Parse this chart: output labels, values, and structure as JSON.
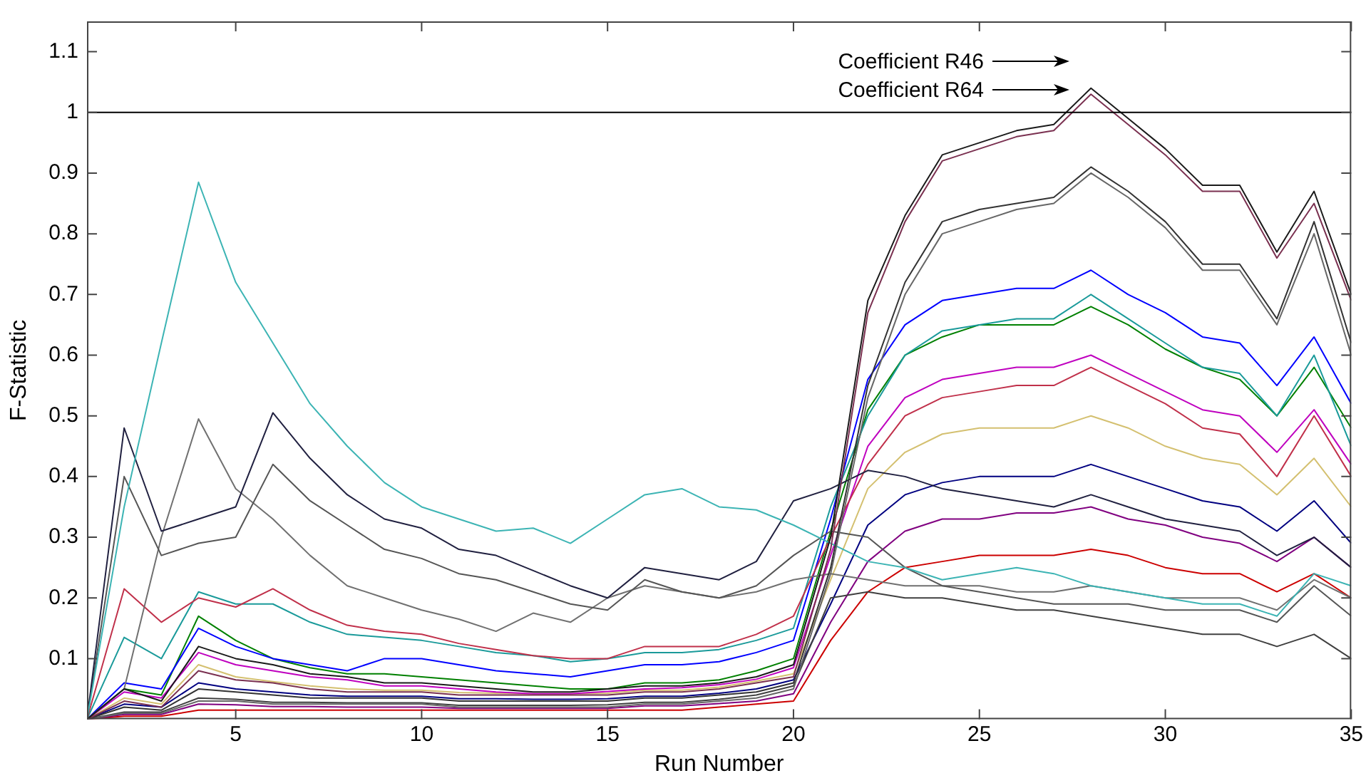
{
  "chart_data": {
    "type": "line",
    "xlabel": "Run Number",
    "ylabel": "F-Statistic",
    "x": [
      1,
      2,
      3,
      4,
      5,
      6,
      7,
      8,
      9,
      10,
      11,
      12,
      13,
      14,
      15,
      16,
      17,
      18,
      19,
      20,
      21,
      22,
      23,
      24,
      25,
      26,
      27,
      28,
      29,
      30,
      31,
      32,
      33,
      34,
      35
    ],
    "xlim": [
      1,
      35
    ],
    "xticks": [
      5,
      10,
      15,
      20,
      25,
      30,
      35
    ],
    "ylim": [
      0,
      1.15
    ],
    "yticks": [
      0.1,
      0.2,
      0.3,
      0.4,
      0.5,
      0.6,
      0.7,
      0.8,
      0.9,
      1,
      1.1
    ],
    "grid": false,
    "legend": false,
    "marker": "none",
    "line_style": "solid",
    "ref_lines": [
      {
        "axis": "y",
        "value": 1,
        "color": "#000000"
      }
    ],
    "annotations": [
      "Coefficient R46",
      "Coefficient R64"
    ],
    "series": [
      {
        "color": "#1a1a1a",
        "values": [
          0,
          0.05,
          0.03,
          0.12,
          0.1,
          0.09,
          0.075,
          0.07,
          0.06,
          0.06,
          0.055,
          0.05,
          0.045,
          0.045,
          0.05,
          0.055,
          0.055,
          0.06,
          0.07,
          0.09,
          0.3,
          0.69,
          0.83,
          0.93,
          0.95,
          0.97,
          0.98,
          1.04,
          0.99,
          0.94,
          0.88,
          0.88,
          0.77,
          0.87,
          0.7
        ]
      },
      {
        "color": "#7a3050",
        "values": [
          0,
          0.03,
          0.02,
          0.08,
          0.065,
          0.06,
          0.05,
          0.045,
          0.045,
          0.045,
          0.04,
          0.04,
          0.04,
          0.04,
          0.04,
          0.045,
          0.045,
          0.05,
          0.06,
          0.07,
          0.28,
          0.67,
          0.82,
          0.92,
          0.94,
          0.96,
          0.97,
          1.03,
          0.98,
          0.93,
          0.87,
          0.87,
          0.76,
          0.85,
          0.69
        ]
      },
      {
        "color": "#333333",
        "values": [
          0,
          0.02,
          0.015,
          0.05,
          0.045,
          0.04,
          0.035,
          0.035,
          0.035,
          0.035,
          0.03,
          0.03,
          0.03,
          0.03,
          0.03,
          0.035,
          0.035,
          0.04,
          0.045,
          0.06,
          0.25,
          0.55,
          0.72,
          0.82,
          0.84,
          0.85,
          0.86,
          0.91,
          0.87,
          0.82,
          0.75,
          0.75,
          0.66,
          0.82,
          0.62
        ]
      },
      {
        "color": "#666666",
        "values": [
          0,
          0.01,
          0.01,
          0.03,
          0.03,
          0.025,
          0.025,
          0.025,
          0.025,
          0.025,
          0.02,
          0.02,
          0.02,
          0.02,
          0.02,
          0.025,
          0.025,
          0.03,
          0.035,
          0.05,
          0.24,
          0.53,
          0.7,
          0.8,
          0.82,
          0.84,
          0.85,
          0.9,
          0.86,
          0.81,
          0.74,
          0.74,
          0.65,
          0.8,
          0.6
        ]
      },
      {
        "color": "#3cb4b4",
        "values": [
          0,
          0.35,
          0.62,
          0.885,
          0.72,
          0.62,
          0.52,
          0.45,
          0.39,
          0.35,
          0.33,
          0.31,
          0.315,
          0.29,
          0.33,
          0.37,
          0.38,
          0.35,
          0.345,
          0.32,
          0.29,
          0.26,
          0.25,
          0.23,
          0.24,
          0.25,
          0.24,
          0.22,
          0.21,
          0.2,
          0.19,
          0.19,
          0.17,
          0.24,
          0.22
        ]
      },
      {
        "color": "#202040",
        "values": [
          0,
          0.48,
          0.31,
          0.33,
          0.35,
          0.505,
          0.43,
          0.37,
          0.33,
          0.315,
          0.28,
          0.27,
          0.245,
          0.22,
          0.2,
          0.25,
          0.24,
          0.23,
          0.26,
          0.36,
          0.38,
          0.41,
          0.4,
          0.38,
          0.37,
          0.36,
          0.35,
          0.37,
          0.35,
          0.33,
          0.32,
          0.31,
          0.27,
          0.3,
          0.25
        ]
      },
      {
        "color": "#555555",
        "values": [
          0,
          0.4,
          0.27,
          0.29,
          0.3,
          0.42,
          0.36,
          0.32,
          0.28,
          0.265,
          0.24,
          0.23,
          0.21,
          0.19,
          0.18,
          0.23,
          0.21,
          0.2,
          0.22,
          0.27,
          0.31,
          0.3,
          0.25,
          0.22,
          0.21,
          0.2,
          0.19,
          0.19,
          0.19,
          0.18,
          0.18,
          0.18,
          0.16,
          0.22,
          0.17
        ]
      },
      {
        "color": "#707070",
        "values": [
          0,
          0.05,
          0.3,
          0.495,
          0.38,
          0.33,
          0.27,
          0.22,
          0.2,
          0.18,
          0.165,
          0.145,
          0.175,
          0.16,
          0.2,
          0.22,
          0.21,
          0.2,
          0.21,
          0.23,
          0.24,
          0.23,
          0.22,
          0.22,
          0.22,
          0.21,
          0.21,
          0.22,
          0.21,
          0.2,
          0.2,
          0.2,
          0.18,
          0.23,
          0.2
        ]
      },
      {
        "color": "#c0304a",
        "values": [
          0,
          0.215,
          0.16,
          0.2,
          0.185,
          0.215,
          0.18,
          0.155,
          0.145,
          0.14,
          0.125,
          0.115,
          0.105,
          0.1,
          0.1,
          0.12,
          0.12,
          0.12,
          0.14,
          0.17,
          0.3,
          0.42,
          0.5,
          0.53,
          0.54,
          0.55,
          0.55,
          0.58,
          0.55,
          0.52,
          0.48,
          0.47,
          0.4,
          0.5,
          0.4
        ]
      },
      {
        "color": "#1a9a9a",
        "values": [
          0,
          0.135,
          0.1,
          0.21,
          0.19,
          0.19,
          0.16,
          0.14,
          0.135,
          0.13,
          0.12,
          0.11,
          0.105,
          0.095,
          0.1,
          0.11,
          0.11,
          0.115,
          0.13,
          0.15,
          0.35,
          0.5,
          0.6,
          0.64,
          0.65,
          0.66,
          0.66,
          0.7,
          0.66,
          0.62,
          0.58,
          0.57,
          0.5,
          0.6,
          0.45
        ]
      },
      {
        "color": "#404040",
        "values": [
          0,
          0.012,
          0.012,
          0.035,
          0.033,
          0.028,
          0.028,
          0.027,
          0.027,
          0.027,
          0.023,
          0.023,
          0.023,
          0.023,
          0.024,
          0.028,
          0.028,
          0.033,
          0.04,
          0.055,
          0.2,
          0.21,
          0.2,
          0.2,
          0.19,
          0.18,
          0.18,
          0.17,
          0.16,
          0.15,
          0.14,
          0.14,
          0.12,
          0.14,
          0.1
        ]
      },
      {
        "color": "#0000ff",
        "values": [
          0,
          0.06,
          0.05,
          0.15,
          0.12,
          0.1,
          0.09,
          0.08,
          0.1,
          0.1,
          0.09,
          0.08,
          0.075,
          0.07,
          0.08,
          0.09,
          0.09,
          0.095,
          0.11,
          0.13,
          0.33,
          0.56,
          0.65,
          0.69,
          0.7,
          0.71,
          0.71,
          0.74,
          0.7,
          0.67,
          0.63,
          0.62,
          0.55,
          0.63,
          0.52
        ]
      },
      {
        "color": "#008000",
        "values": [
          0,
          0.05,
          0.04,
          0.17,
          0.13,
          0.1,
          0.085,
          0.075,
          0.075,
          0.07,
          0.065,
          0.06,
          0.055,
          0.05,
          0.05,
          0.06,
          0.06,
          0.065,
          0.08,
          0.1,
          0.31,
          0.51,
          0.6,
          0.63,
          0.65,
          0.65,
          0.65,
          0.68,
          0.65,
          0.61,
          0.58,
          0.56,
          0.5,
          0.58,
          0.48
        ]
      },
      {
        "color": "#bf00bf",
        "values": [
          0,
          0.045,
          0.035,
          0.11,
          0.09,
          0.08,
          0.07,
          0.065,
          0.055,
          0.055,
          0.05,
          0.045,
          0.042,
          0.042,
          0.046,
          0.05,
          0.052,
          0.057,
          0.066,
          0.085,
          0.27,
          0.45,
          0.53,
          0.56,
          0.57,
          0.58,
          0.58,
          0.6,
          0.57,
          0.54,
          0.51,
          0.5,
          0.44,
          0.51,
          0.42
        ]
      },
      {
        "color": "#d4c070",
        "values": [
          0,
          0.035,
          0.025,
          0.09,
          0.07,
          0.062,
          0.055,
          0.05,
          0.048,
          0.048,
          0.044,
          0.043,
          0.042,
          0.042,
          0.043,
          0.048,
          0.048,
          0.053,
          0.063,
          0.075,
          0.23,
          0.38,
          0.44,
          0.47,
          0.48,
          0.48,
          0.48,
          0.5,
          0.48,
          0.45,
          0.43,
          0.42,
          0.37,
          0.43,
          0.35
        ]
      },
      {
        "color": "#000080",
        "values": [
          0,
          0.025,
          0.02,
          0.06,
          0.05,
          0.045,
          0.04,
          0.038,
          0.038,
          0.038,
          0.034,
          0.034,
          0.033,
          0.033,
          0.034,
          0.038,
          0.038,
          0.043,
          0.05,
          0.065,
          0.19,
          0.32,
          0.37,
          0.39,
          0.4,
          0.4,
          0.4,
          0.42,
          0.4,
          0.38,
          0.36,
          0.35,
          0.31,
          0.36,
          0.29
        ]
      },
      {
        "color": "#800080",
        "values": [
          0,
          0.008,
          0.008,
          0.025,
          0.024,
          0.021,
          0.021,
          0.02,
          0.02,
          0.02,
          0.018,
          0.018,
          0.018,
          0.018,
          0.018,
          0.022,
          0.022,
          0.026,
          0.03,
          0.042,
          0.16,
          0.26,
          0.31,
          0.33,
          0.33,
          0.34,
          0.34,
          0.35,
          0.33,
          0.32,
          0.3,
          0.29,
          0.26,
          0.3,
          0.25
        ]
      },
      {
        "color": "#cc0000",
        "values": [
          0,
          0.005,
          0.005,
          0.015,
          0.015,
          0.015,
          0.015,
          0.015,
          0.015,
          0.015,
          0.015,
          0.015,
          0.015,
          0.015,
          0.015,
          0.015,
          0.015,
          0.02,
          0.025,
          0.03,
          0.13,
          0.21,
          0.25,
          0.26,
          0.27,
          0.27,
          0.27,
          0.28,
          0.27,
          0.25,
          0.24,
          0.24,
          0.21,
          0.24,
          0.2
        ]
      }
    ]
  }
}
